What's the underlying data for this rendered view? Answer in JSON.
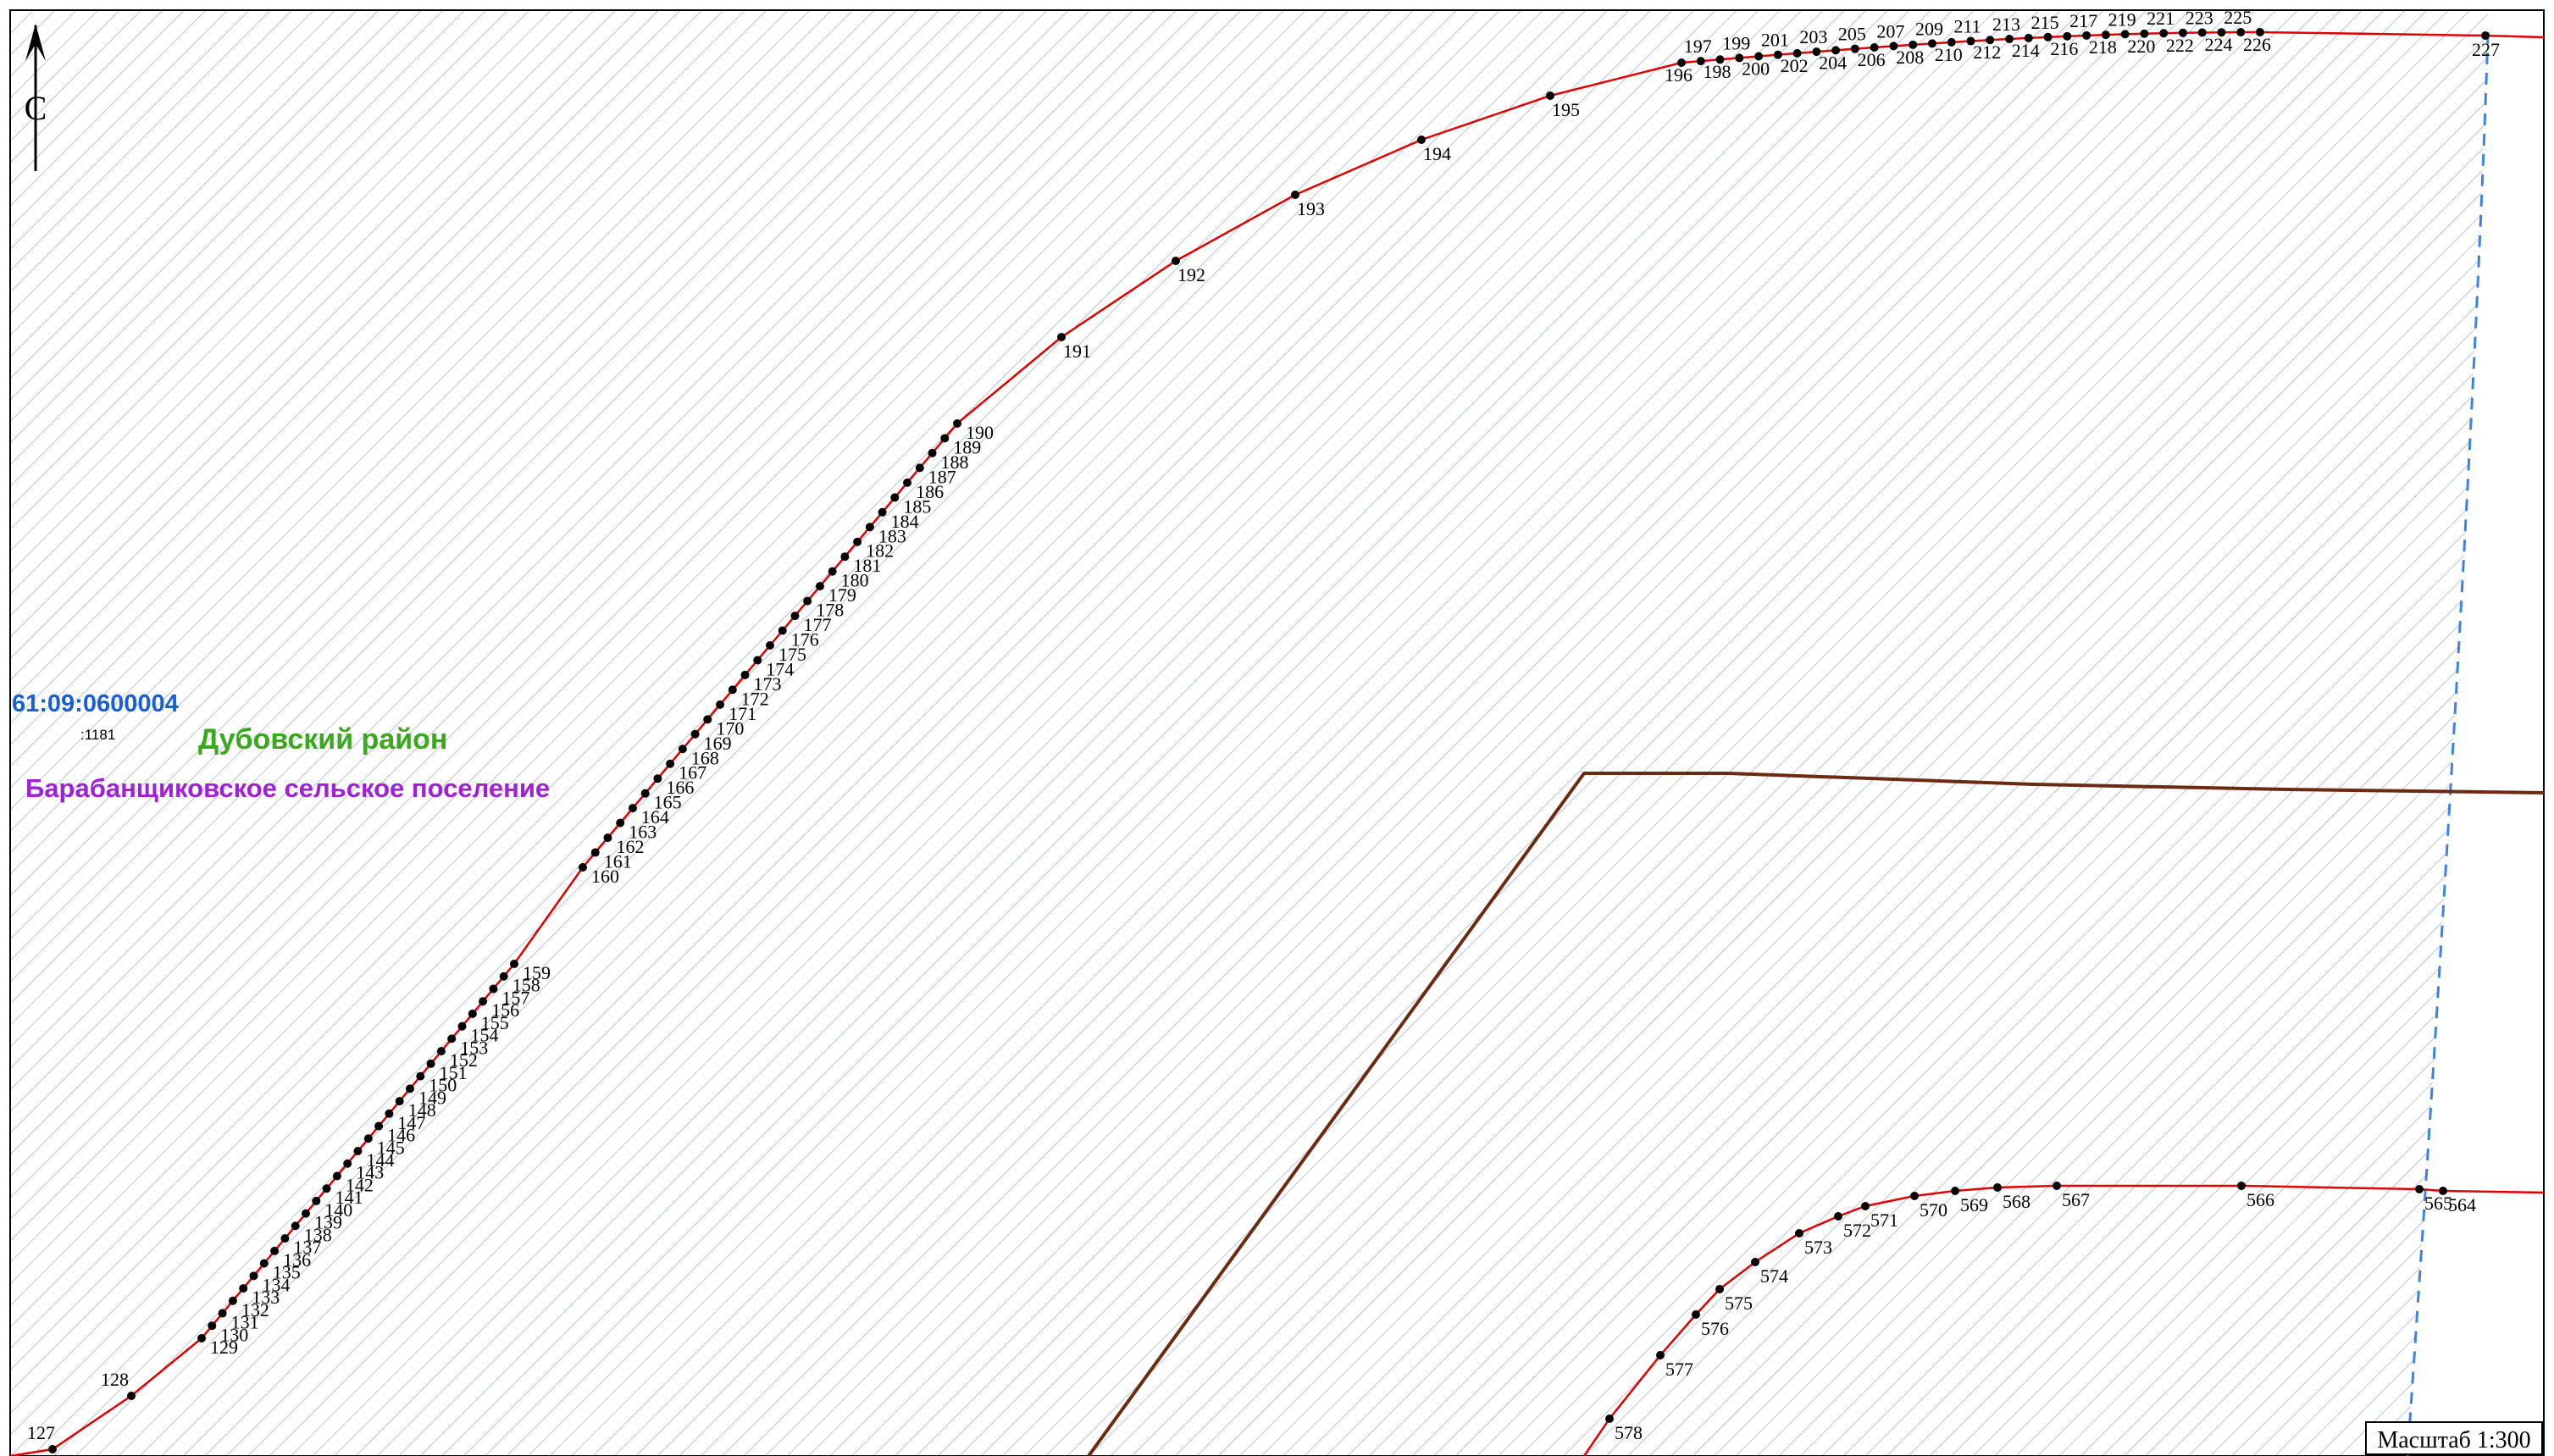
{
  "map": {
    "north_label": "С",
    "scale_label": "Масштаб 1:300",
    "cadastral_block": "61:09:0600004",
    "parcel_number": ":1181",
    "district_label": "Дубовский район",
    "settlement_label": "Барабанщиковское сельское поселение",
    "colors": {
      "boundary": "#e00000",
      "admin_border": "#6b2a12",
      "hatch": "#a9b4ce",
      "cadastral_line": "#3f82e0",
      "point": "#000000"
    }
  },
  "upper_boundary_points": [
    "127",
    "128",
    "129",
    "130",
    "131",
    "132",
    "133",
    "134",
    "135",
    "136",
    "137",
    "138",
    "139",
    "140",
    "141",
    "142",
    "143",
    "144",
    "145",
    "146",
    "147",
    "148",
    "149",
    "150",
    "151",
    "152",
    "153",
    "154",
    "155",
    "156",
    "157",
    "158",
    "159",
    "160",
    "161",
    "162",
    "163",
    "164",
    "165",
    "166",
    "167",
    "168",
    "169",
    "170",
    "171",
    "172",
    "173",
    "174",
    "175",
    "176",
    "177",
    "178",
    "179",
    "180",
    "181",
    "182",
    "183",
    "184",
    "185",
    "186",
    "187",
    "188",
    "189",
    "190",
    "191",
    "192",
    "193",
    "194",
    "195",
    "196",
    "197",
    "198",
    "199",
    "200",
    "201",
    "202",
    "203",
    "204",
    "205",
    "206",
    "207",
    "208",
    "209",
    "210",
    "211",
    "212",
    "213",
    "214",
    "215",
    "216",
    "217",
    "218",
    "219",
    "220",
    "221",
    "222",
    "223",
    "224",
    "225",
    "226",
    "227"
  ],
  "lower_boundary_points": [
    "564",
    "565",
    "566",
    "567",
    "568",
    "569",
    "570",
    "571",
    "572",
    "573",
    "574",
    "575",
    "576",
    "577",
    "578"
  ]
}
